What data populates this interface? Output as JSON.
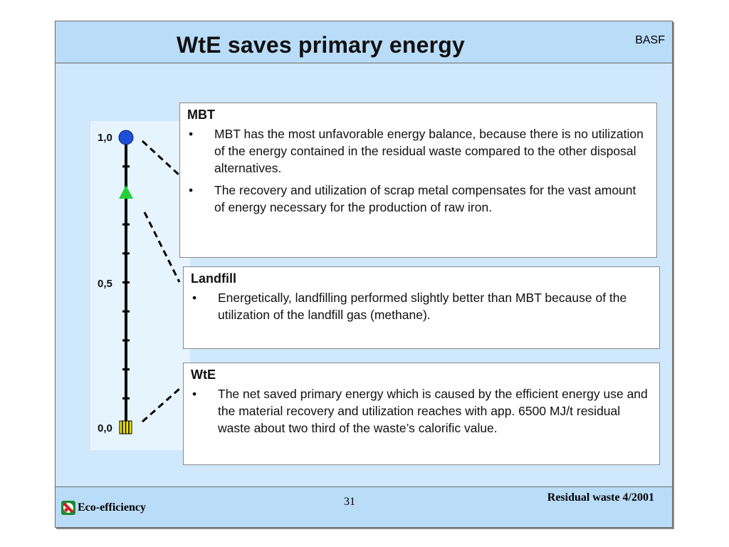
{
  "header": {
    "title": "WtE saves primary energy",
    "brand": "BASF"
  },
  "scale": {
    "labels": [
      "1,0",
      "0,5",
      "0,0"
    ],
    "markers": [
      {
        "name": "MBT",
        "value": 1.0,
        "shape": "circle",
        "color": "#1e4fd8"
      },
      {
        "name": "Landfill",
        "value": 0.9,
        "shape": "triangle",
        "color": "#22d13a"
      },
      {
        "name": "WtE",
        "value": 0.0,
        "shape": "hatched-square",
        "color": "#f2e600"
      }
    ]
  },
  "boxes": {
    "mbt": {
      "title": "MBT",
      "bullets": [
        "MBT has the most unfavorable energy balance, because there is no utilization of the energy contained in the residual waste compared to the other disposal alternatives.",
        "The recovery and utilization of scrap metal compensates for the vast amount of energy necessary for the production of raw iron."
      ]
    },
    "landfill": {
      "title": "Landfill",
      "bullets": [
        "Energetically, landfilling performed slightly better than MBT because of  the utilization of the landfill gas (methane)."
      ]
    },
    "wte": {
      "title": "WtE",
      "bullets": [
        "The net saved primary energy which is caused by the efficient energy use and the material recovery and utilization reaches with app. 6500 MJ/t residual waste about two third of the waste’s calorific value."
      ]
    }
  },
  "footer": {
    "logo_text": "Eco-efficiency",
    "page": "31",
    "right": "Residual waste 4/2001"
  },
  "colors": {
    "background": "#cfe8fb",
    "bar": "#b9dcf8"
  }
}
